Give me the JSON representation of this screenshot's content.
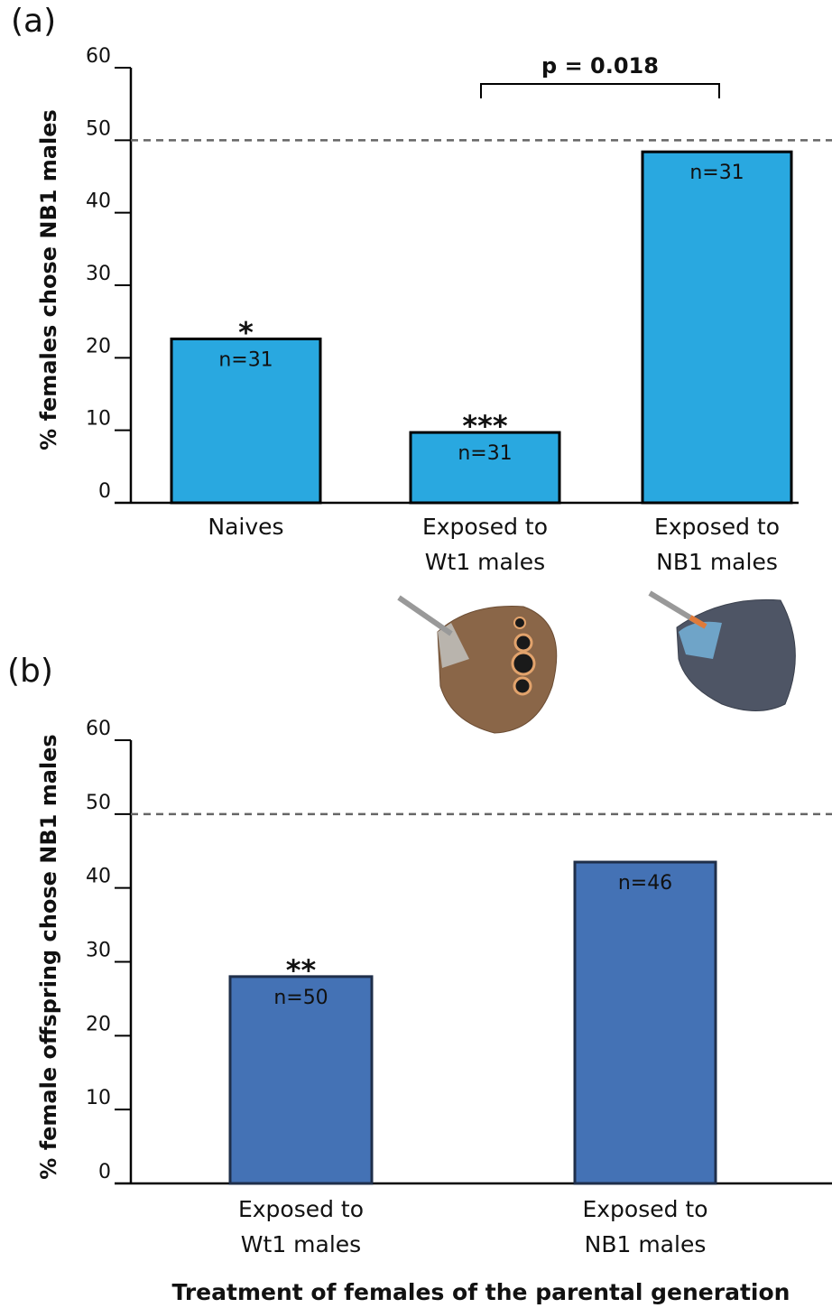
{
  "chart_data": [
    {
      "type": "bar",
      "panel_label": "(a)",
      "ylabel": "% females chose NB1 males",
      "categories": [
        "Naives",
        "Exposed to\nWt1 males",
        "Exposed to\nNB1 males"
      ],
      "values": [
        22.6,
        9.7,
        48.4
      ],
      "color": "#29a8e0",
      "annotations": [
        "n=31",
        "n=31",
        "n=31"
      ],
      "significance": [
        "*",
        "***",
        null
      ],
      "comparison_label": "p = 0.018",
      "reference_line": 50,
      "ylim": [
        0,
        60
      ],
      "yticks": [
        0,
        10,
        20,
        30,
        40,
        50,
        60
      ]
    },
    {
      "type": "bar",
      "panel_label": "(b)",
      "ylabel": "% female offspring chose NB1 males",
      "xlabel": "Treatment of females of the parental generation",
      "categories": [
        "Exposed to\nWt1 males",
        "Exposed to\nNB1 males"
      ],
      "values": [
        28,
        43.5
      ],
      "color": "#4472b5",
      "annotations": [
        "n=50",
        "n=46"
      ],
      "significance": [
        "**",
        null
      ],
      "reference_line": 50,
      "ylim": [
        0,
        60
      ],
      "yticks": [
        0,
        10,
        20,
        30,
        40,
        50,
        60
      ]
    }
  ]
}
